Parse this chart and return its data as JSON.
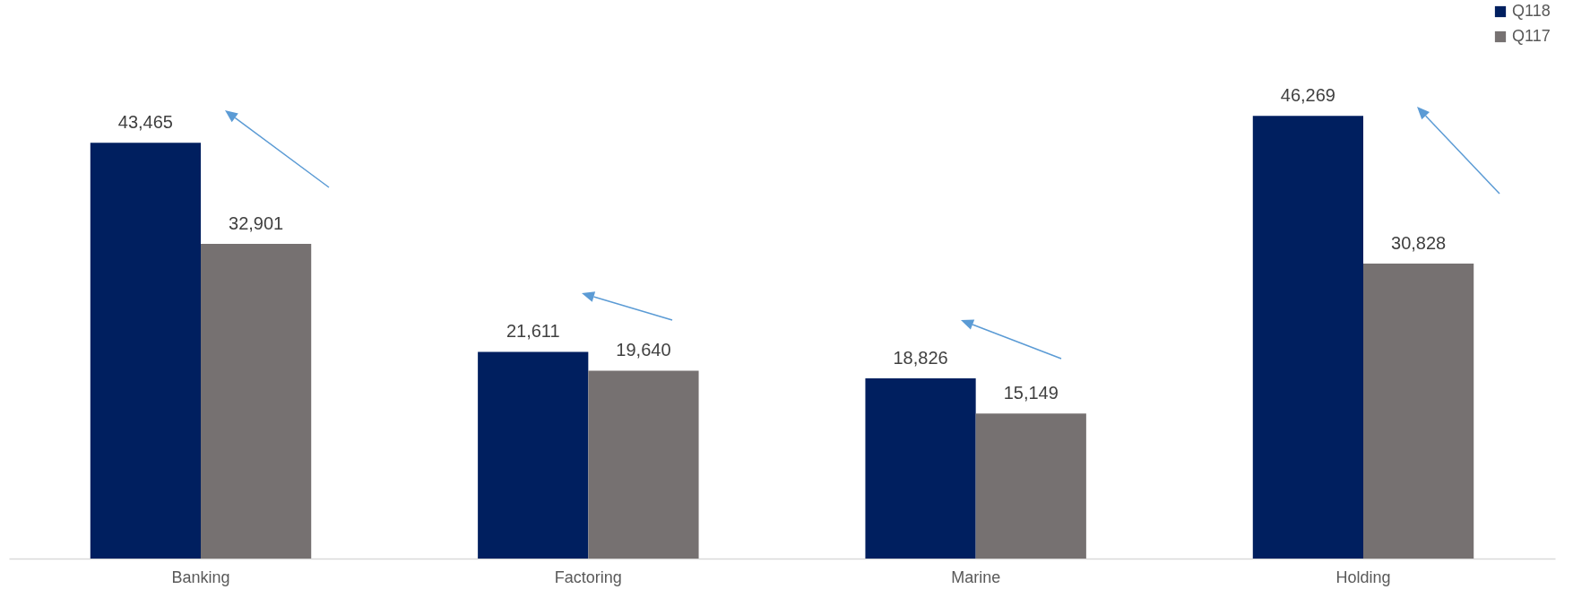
{
  "chart_data": {
    "type": "bar",
    "categories": [
      "Banking",
      "Factoring",
      "Marine",
      "Holding"
    ],
    "series": [
      {
        "name": "Q118",
        "color": "#001f5f",
        "values": [
          43465,
          21611,
          18826,
          46269
        ],
        "value_labels": [
          "43,465",
          "21,611",
          "18,826",
          "46,269"
        ]
      },
      {
        "name": "Q117",
        "color": "#767171",
        "values": [
          32901,
          19640,
          15149,
          30828
        ],
        "value_labels": [
          "32,901",
          "19,640",
          "15,149",
          "30,828"
        ]
      }
    ],
    "legend": "top right",
    "grid": false
  }
}
